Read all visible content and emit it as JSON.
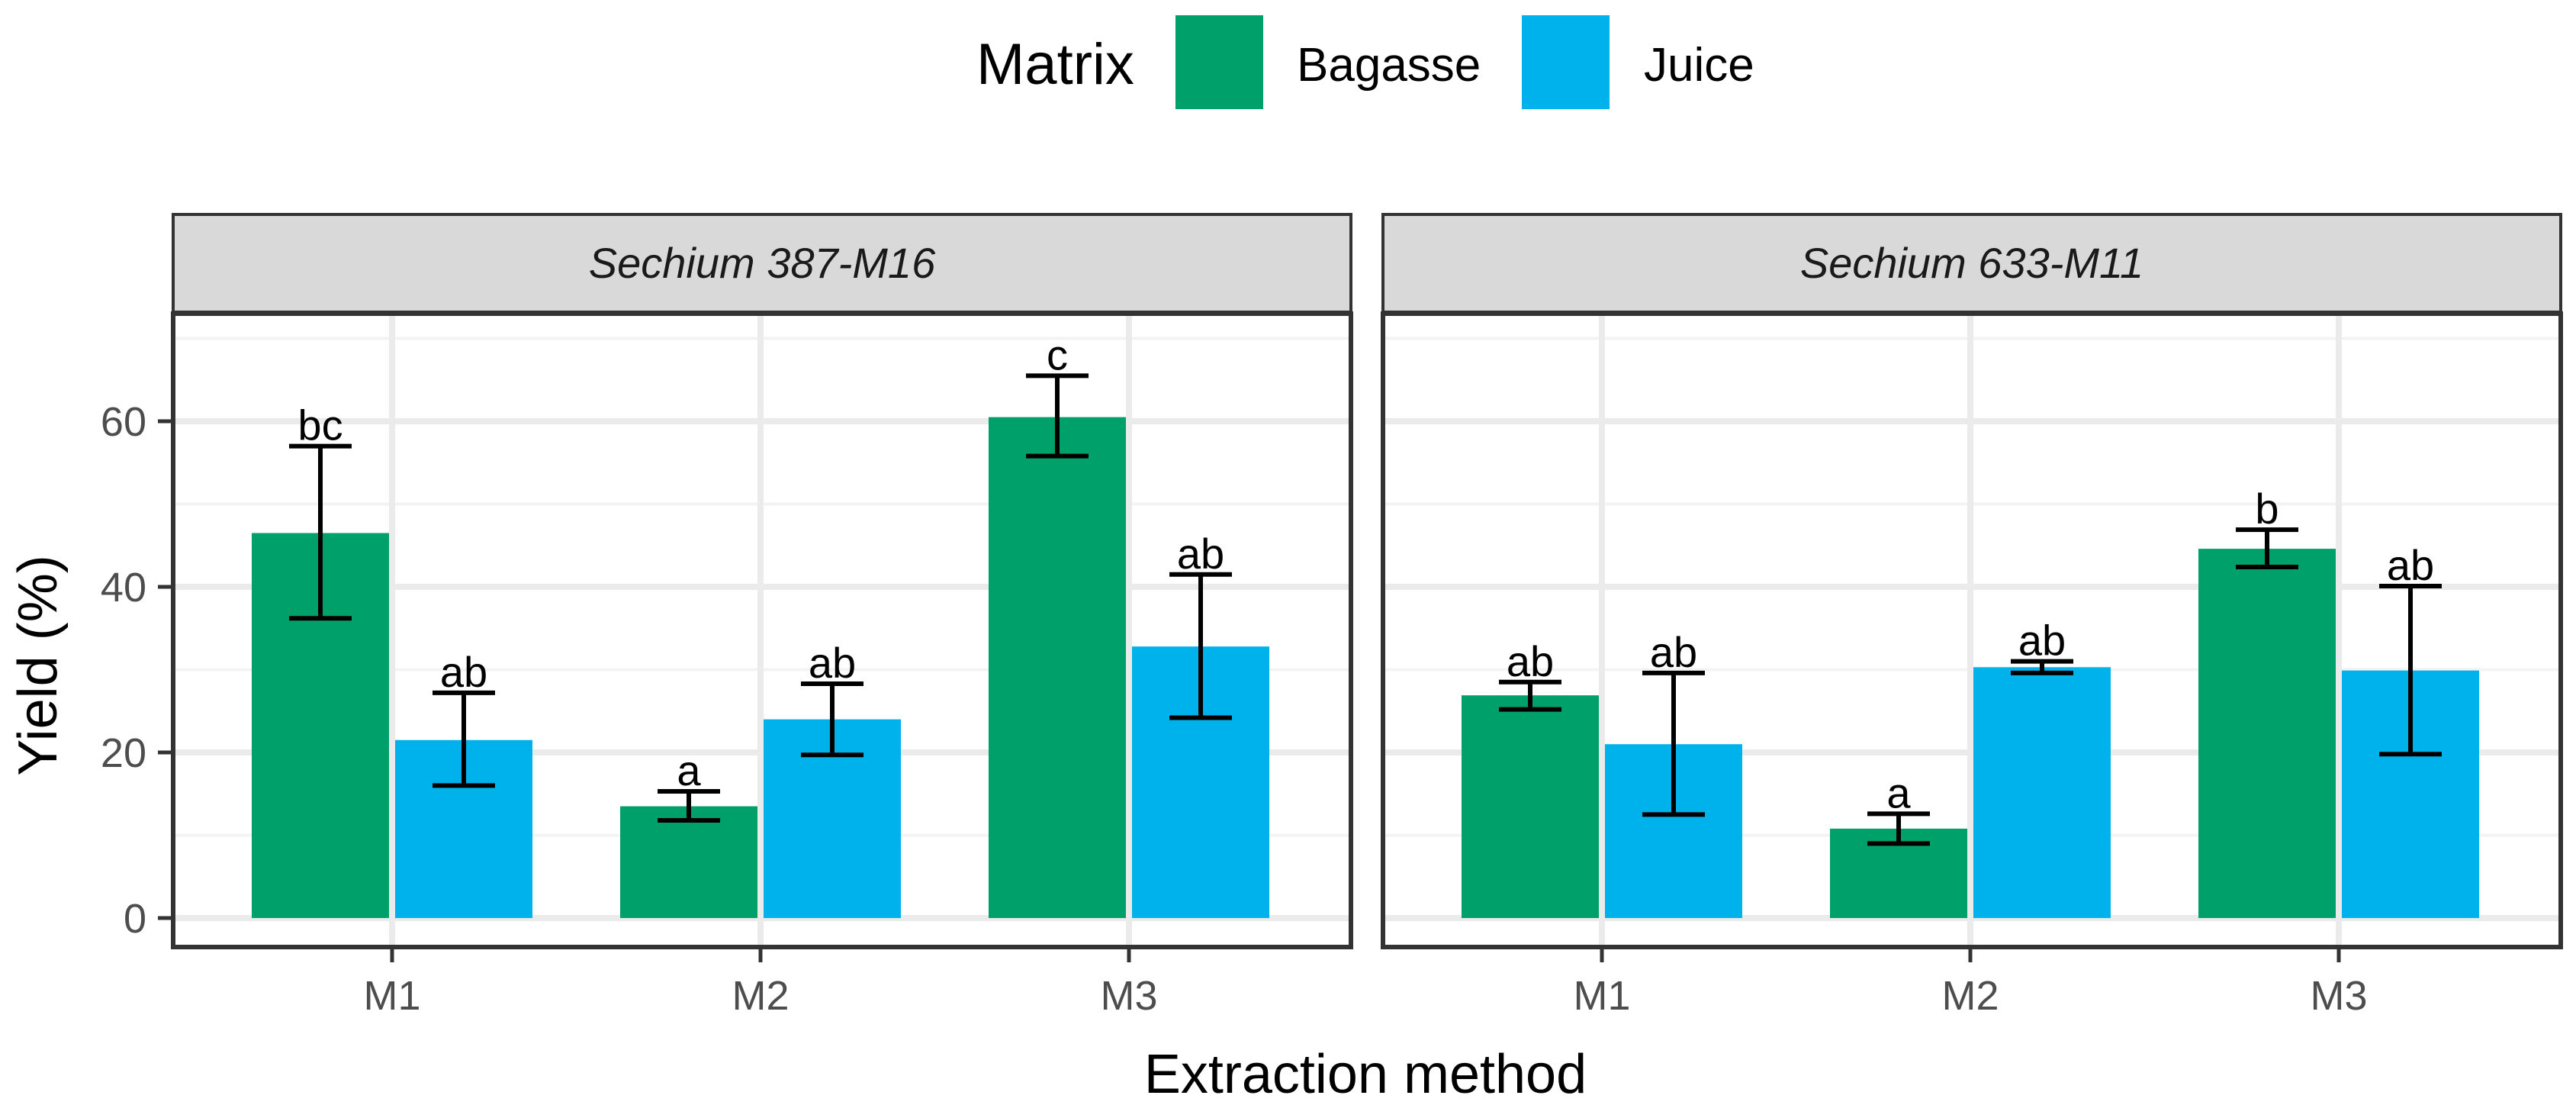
{
  "chart_data": {
    "type": "bar",
    "facet_variable": "Genotype",
    "legend": {
      "title": "Matrix",
      "position": "top",
      "entries": [
        {
          "name": "Bagasse",
          "color": "#00A06A"
        },
        {
          "name": "Juice",
          "color": "#00B2EC"
        }
      ]
    },
    "xlabel": "Extraction method",
    "ylabel": "Yield (%)",
    "ylim": [
      -3.5,
      73
    ],
    "yticks": [
      0,
      20,
      40,
      60
    ],
    "categories": [
      "M1",
      "M2",
      "M3"
    ],
    "grid": true,
    "panels": [
      {
        "title": "Sechium 387-M16",
        "series": [
          {
            "name": "Bagasse",
            "values": [
              46.5,
              13.5,
              60.5
            ],
            "err_low": [
              36.2,
              11.8,
              55.8
            ],
            "err_high": [
              57,
              15.3,
              65.5
            ],
            "labels": [
              "bc",
              "a",
              "c"
            ]
          },
          {
            "name": "Juice",
            "values": [
              21.5,
              24,
              32.8
            ],
            "err_low": [
              16,
              19.7,
              24.2
            ],
            "err_high": [
              27.2,
              28.3,
              41.5
            ],
            "labels": [
              "ab",
              "ab",
              "ab"
            ]
          }
        ]
      },
      {
        "title": "Sechium 633-M11",
        "series": [
          {
            "name": "Bagasse",
            "values": [
              26.9,
              10.8,
              44.6
            ],
            "err_low": [
              25.2,
              9,
              42.4
            ],
            "err_high": [
              28.5,
              12.6,
              46.9
            ],
            "labels": [
              "ab",
              "a",
              "b"
            ]
          },
          {
            "name": "Juice",
            "values": [
              21,
              30.3,
              29.9
            ],
            "err_low": [
              12.5,
              29.6,
              19.8
            ],
            "err_high": [
              29.6,
              31,
              40.1
            ],
            "labels": [
              "ab",
              "ab",
              "ab"
            ]
          }
        ]
      }
    ]
  }
}
